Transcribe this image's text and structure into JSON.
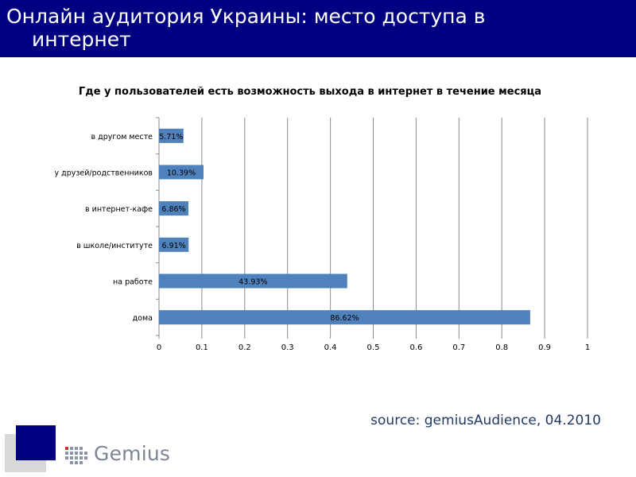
{
  "header": {
    "title_line1": "Онлайн аудитория Украины: место доступа в",
    "title_line2": "интернет"
  },
  "colors": {
    "banner": "#000080",
    "bar": "#4f81bd",
    "corner_square": "#000080",
    "corner_shadow": "#d9d9d9"
  },
  "chart_data": {
    "type": "bar",
    "orientation": "horizontal",
    "title": "Где у пользователей есть возможность выхода в интернет в течение месяца",
    "categories": [
      "в другом месте",
      "у друзей/родственников",
      "в интернет-кафе",
      "в школе/институте",
      "на работе",
      "дома"
    ],
    "values": [
      0.0571,
      0.1039,
      0.0686,
      0.0691,
      0.4393,
      0.8662
    ],
    "data_labels": [
      "5.71%",
      "10.39%",
      "6.86%",
      "6.91%",
      "43.93%",
      "86.62%"
    ],
    "xlim": [
      0,
      1
    ],
    "x_ticks": [
      0,
      0.1,
      0.2,
      0.3,
      0.4,
      0.5,
      0.6,
      0.7,
      0.8,
      0.9,
      1
    ],
    "x_tick_labels": [
      "0",
      "0.1",
      "0.2",
      "0.3",
      "0.4",
      "0.5",
      "0.6",
      "0.7",
      "0.8",
      "0.9",
      "1"
    ],
    "grid": "vertical",
    "legend": "none"
  },
  "footer": {
    "source": "source: gemiusAudience, 04.2010",
    "logo_text": "Gemius"
  }
}
